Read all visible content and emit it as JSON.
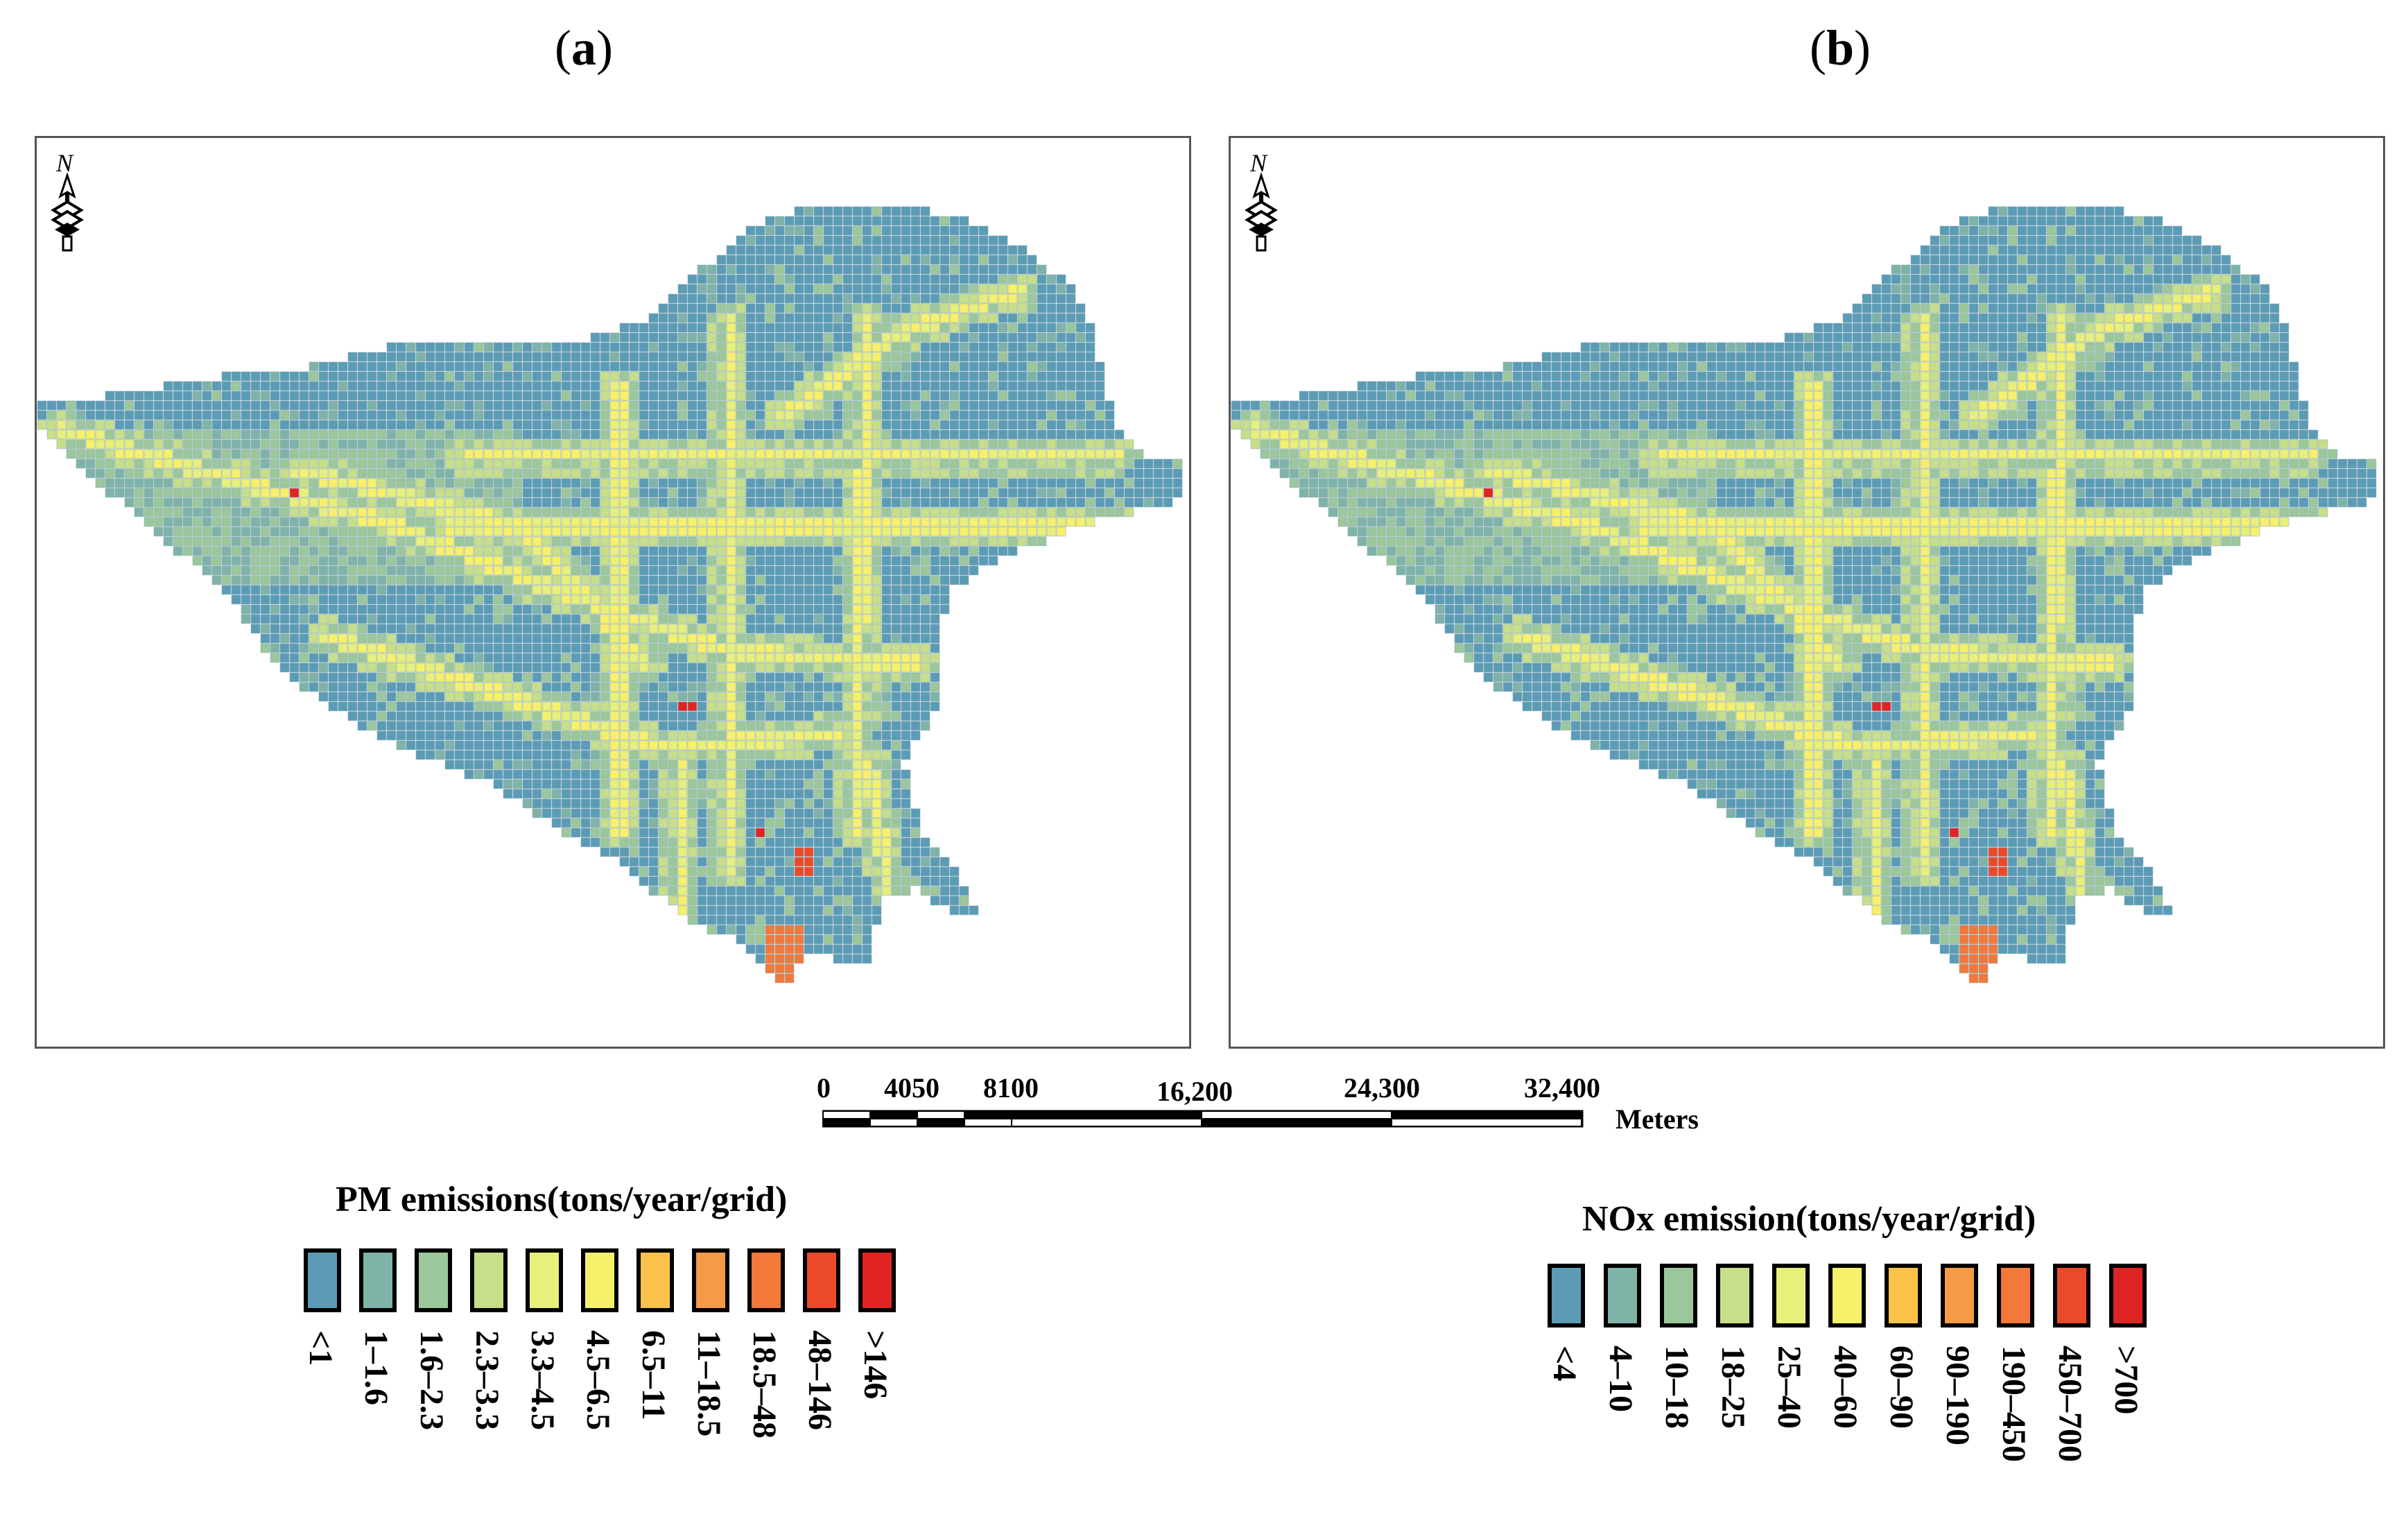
{
  "panels": {
    "a": {
      "label": "a"
    },
    "b": {
      "label": "b"
    }
  },
  "north_arrow": {
    "letter": "N"
  },
  "scale_bar": {
    "ticks": [
      "0",
      "4050",
      "8100",
      "16,200",
      "24,300",
      "32,400"
    ],
    "unit": "Meters"
  },
  "legend_pm": {
    "title": "PM emissions(tons/year/grid)",
    "classes": [
      "<1",
      "1–1.6",
      "1.6–2.3",
      "2.3–3.3",
      "3.3–4.5",
      "4.5–6.5",
      "6.5–11",
      "11–18.5",
      "18.5–48",
      "48–146",
      ">146"
    ]
  },
  "legend_nox": {
    "title": "NOx emission(tons/year/grid)",
    "classes": [
      "<4",
      "4–10",
      "10–18",
      "18–25",
      "25–40",
      "40–60",
      "60–90",
      "90–190",
      "190–450",
      "450–700",
      ">700"
    ]
  },
  "colors": {
    "ramp": [
      "#5b9bb5",
      "#7fb3a8",
      "#9cc79a",
      "#c8df8a",
      "#e8ef7a",
      "#f7f06a",
      "#fbc24a",
      "#f59a45",
      "#f2793a",
      "#ea4a2a",
      "#e02424"
    ],
    "base_grid": "#5b9bb5",
    "frame": "#555555"
  }
}
